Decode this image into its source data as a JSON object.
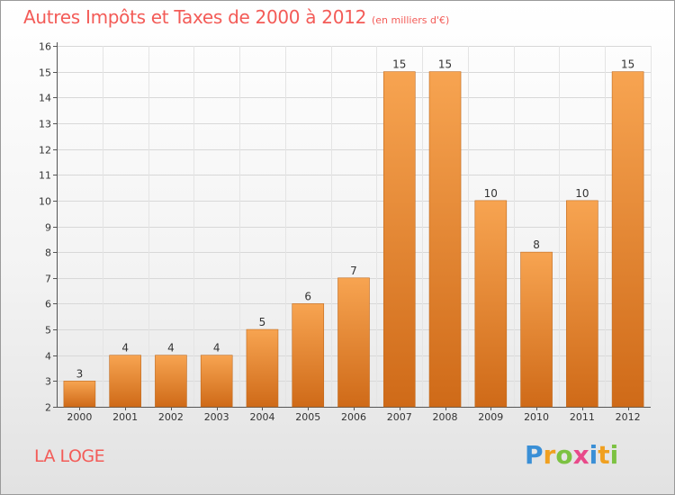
{
  "title": "Autres Impôts et Taxes de 2000 à 2012",
  "subtitle": "(en milliers d'€)",
  "commune": "LA LOGE",
  "brand": {
    "letters": [
      "P",
      "r",
      "o",
      "x",
      "i",
      "t",
      "i"
    ],
    "colors": [
      "#3a8fd6",
      "#f0a020",
      "#7cc242",
      "#e84a8a",
      "#3a8fd6",
      "#f0a020",
      "#7cc242"
    ]
  },
  "colors": {
    "title": "#f35b57",
    "bar_top": "#f7a451",
    "bar_bottom": "#cf6a18"
  },
  "chart_data": {
    "type": "bar",
    "categories": [
      "2000",
      "2001",
      "2002",
      "2003",
      "2004",
      "2005",
      "2006",
      "2007",
      "2008",
      "2009",
      "2010",
      "2011",
      "2012"
    ],
    "values": [
      3,
      4,
      4,
      4,
      5,
      6,
      7,
      15,
      15,
      10,
      8,
      10,
      15
    ],
    "ylim": [
      2,
      16
    ],
    "yticks": [
      2,
      3,
      4,
      5,
      6,
      7,
      8,
      9,
      10,
      11,
      12,
      13,
      14,
      15,
      16
    ],
    "grid": true,
    "legend": "none"
  }
}
